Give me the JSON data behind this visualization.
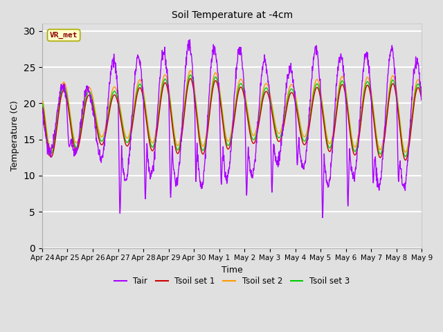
{
  "title": "Soil Temperature at -4cm",
  "xlabel": "Time",
  "ylabel": "Temperature (C)",
  "ylim": [
    0,
    31
  ],
  "background_color": "#e0e0e0",
  "plot_bg_color": "#e0e0e0",
  "grid_color": "#ffffff",
  "colors": {
    "Tair": "#aa00ff",
    "Tsoil1": "#cc0000",
    "Tsoil2": "#ff9900",
    "Tsoil3": "#00cc00"
  },
  "legend_labels": [
    "Tair",
    "Tsoil set 1",
    "Tsoil set 2",
    "Tsoil set 3"
  ],
  "annotation_text": "VR_met",
  "yticks": [
    0,
    5,
    10,
    15,
    20,
    25,
    30
  ],
  "xtick_labels": [
    "Apr 24",
    "Apr 25",
    "Apr 26",
    "Apr 27",
    "Apr 28",
    "Apr 29",
    "Apr 30",
    "May 1",
    "May 2",
    "May 3",
    "May 4",
    "May 5",
    "May 6",
    "May 7",
    "May 8",
    "May 9"
  ],
  "lw": 1.0
}
